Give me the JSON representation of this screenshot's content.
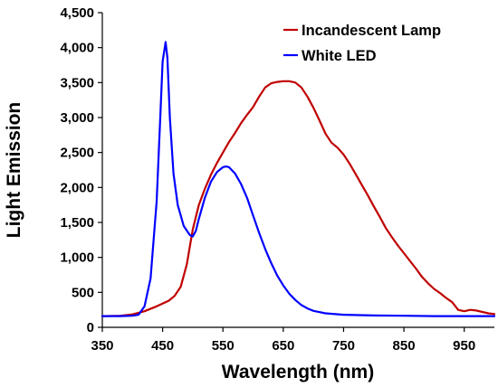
{
  "chart_data": {
    "type": "line",
    "xlabel": "Wavelength (nm)",
    "ylabel": "Light Emission",
    "xlim": [
      350,
      1000
    ],
    "ylim": [
      0,
      4500
    ],
    "x_ticks": [
      350,
      450,
      550,
      650,
      750,
      850,
      950
    ],
    "x_tick_labels": [
      "350",
      "450",
      "550",
      "650",
      "750",
      "850",
      "950"
    ],
    "y_ticks": [
      0,
      500,
      1000,
      1500,
      2000,
      2500,
      3000,
      3500,
      4000,
      4500
    ],
    "y_tick_labels": [
      "0",
      "500",
      "1,000",
      "1,500",
      "2,000",
      "2,500",
      "3,000",
      "3,500",
      "4,000",
      "4,500"
    ],
    "grid": false,
    "legend_position": "top-right",
    "series": [
      {
        "name": "Incandescent Lamp",
        "color": "#c00000",
        "points": [
          [
            350,
            160
          ],
          [
            380,
            165
          ],
          [
            400,
            185
          ],
          [
            420,
            230
          ],
          [
            440,
            300
          ],
          [
            460,
            380
          ],
          [
            470,
            450
          ],
          [
            480,
            580
          ],
          [
            490,
            900
          ],
          [
            500,
            1400
          ],
          [
            510,
            1750
          ],
          [
            520,
            1980
          ],
          [
            530,
            2180
          ],
          [
            540,
            2350
          ],
          [
            550,
            2500
          ],
          [
            560,
            2650
          ],
          [
            570,
            2780
          ],
          [
            580,
            2920
          ],
          [
            590,
            3040
          ],
          [
            600,
            3150
          ],
          [
            610,
            3300
          ],
          [
            620,
            3430
          ],
          [
            630,
            3490
          ],
          [
            640,
            3510
          ],
          [
            650,
            3520
          ],
          [
            660,
            3520
          ],
          [
            670,
            3500
          ],
          [
            680,
            3430
          ],
          [
            690,
            3300
          ],
          [
            700,
            3140
          ],
          [
            710,
            2960
          ],
          [
            720,
            2770
          ],
          [
            730,
            2640
          ],
          [
            740,
            2570
          ],
          [
            750,
            2470
          ],
          [
            760,
            2340
          ],
          [
            770,
            2190
          ],
          [
            780,
            2040
          ],
          [
            790,
            1890
          ],
          [
            800,
            1730
          ],
          [
            810,
            1580
          ],
          [
            820,
            1420
          ],
          [
            830,
            1290
          ],
          [
            840,
            1170
          ],
          [
            850,
            1060
          ],
          [
            860,
            950
          ],
          [
            870,
            840
          ],
          [
            880,
            720
          ],
          [
            890,
            630
          ],
          [
            900,
            550
          ],
          [
            910,
            490
          ],
          [
            920,
            420
          ],
          [
            930,
            360
          ],
          [
            940,
            250
          ],
          [
            950,
            230
          ],
          [
            960,
            250
          ],
          [
            970,
            240
          ],
          [
            980,
            220
          ],
          [
            990,
            200
          ],
          [
            1000,
            190
          ]
        ]
      },
      {
        "name": "White LED",
        "color": "#0000ff",
        "points": [
          [
            350,
            160
          ],
          [
            380,
            160
          ],
          [
            400,
            165
          ],
          [
            410,
            180
          ],
          [
            420,
            300
          ],
          [
            430,
            700
          ],
          [
            440,
            1800
          ],
          [
            446,
            3000
          ],
          [
            450,
            3800
          ],
          [
            455,
            4080
          ],
          [
            458,
            3850
          ],
          [
            462,
            3000
          ],
          [
            468,
            2200
          ],
          [
            475,
            1750
          ],
          [
            485,
            1450
          ],
          [
            495,
            1320
          ],
          [
            500,
            1300
          ],
          [
            505,
            1380
          ],
          [
            510,
            1550
          ],
          [
            520,
            1850
          ],
          [
            530,
            2080
          ],
          [
            540,
            2220
          ],
          [
            550,
            2290
          ],
          [
            555,
            2300
          ],
          [
            560,
            2290
          ],
          [
            570,
            2200
          ],
          [
            580,
            2050
          ],
          [
            590,
            1850
          ],
          [
            600,
            1600
          ],
          [
            610,
            1350
          ],
          [
            620,
            1120
          ],
          [
            630,
            920
          ],
          [
            640,
            740
          ],
          [
            650,
            600
          ],
          [
            660,
            480
          ],
          [
            670,
            390
          ],
          [
            680,
            320
          ],
          [
            690,
            270
          ],
          [
            700,
            235
          ],
          [
            720,
            200
          ],
          [
            750,
            180
          ],
          [
            800,
            170
          ],
          [
            850,
            165
          ],
          [
            900,
            160
          ],
          [
            950,
            160
          ],
          [
            1000,
            160
          ]
        ]
      }
    ]
  }
}
